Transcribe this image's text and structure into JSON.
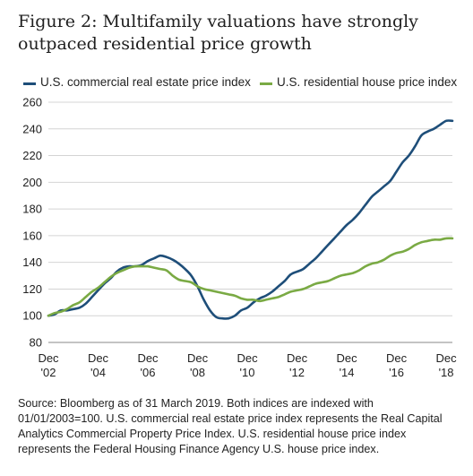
{
  "figure": {
    "title": "Figure 2: Multifamily valuations have strongly outpaced residential price growth",
    "source": "Source: Bloomberg as of 31 March 2019. Both indices are indexed with 01/01/2003=100. U.S. commercial real estate price index represents the Real Capital Analytics Commercial Property Price Index. U.S. residential house price index represents the Federal Housing Finance Agency U.S. house price index."
  },
  "chart_data": {
    "type": "line",
    "title": "Figure 2: Multifamily valuations have strongly outpaced residential price growth",
    "xlabel": "",
    "ylabel": "",
    "ylim": [
      80,
      260
    ],
    "yticks": [
      80,
      100,
      120,
      140,
      160,
      180,
      200,
      220,
      240,
      260
    ],
    "xlim": [
      2003,
      2019.25
    ],
    "xticks": [
      {
        "x": 2003,
        "label": [
          "Dec",
          "'02"
        ]
      },
      {
        "x": 2005,
        "label": [
          "Dec",
          "'04"
        ]
      },
      {
        "x": 2007,
        "label": [
          "Dec",
          "'06"
        ]
      },
      {
        "x": 2009,
        "label": [
          "Dec",
          "'08"
        ]
      },
      {
        "x": 2011,
        "label": [
          "Dec",
          "'10"
        ]
      },
      {
        "x": 2013,
        "label": [
          "Dec",
          "'12"
        ]
      },
      {
        "x": 2015,
        "label": [
          "Dec",
          "'14"
        ]
      },
      {
        "x": 2017,
        "label": [
          "Dec",
          "'16"
        ]
      },
      {
        "x": 2019,
        "label": [
          "Dec",
          "'18"
        ]
      }
    ],
    "grid": "horizontal",
    "legend": "top",
    "series": [
      {
        "name": "U.S. commercial real estate price index",
        "color": "#1e4e79",
        "x": [
          2003,
          2003.25,
          2003.5,
          2003.75,
          2004,
          2004.25,
          2004.5,
          2004.75,
          2005,
          2005.25,
          2005.5,
          2005.75,
          2006,
          2006.25,
          2006.5,
          2006.75,
          2007,
          2007.25,
          2007.5,
          2007.75,
          2008,
          2008.25,
          2008.5,
          2008.75,
          2009,
          2009.25,
          2009.5,
          2009.75,
          2010,
          2010.25,
          2010.5,
          2010.75,
          2011,
          2011.25,
          2011.5,
          2011.75,
          2012,
          2012.25,
          2012.5,
          2012.75,
          2013,
          2013.25,
          2013.5,
          2013.75,
          2014,
          2014.25,
          2014.5,
          2014.75,
          2015,
          2015.25,
          2015.5,
          2015.75,
          2016,
          2016.25,
          2016.5,
          2016.75,
          2017,
          2017.25,
          2017.5,
          2017.75,
          2018,
          2018.25,
          2018.5,
          2018.75,
          2019,
          2019.25
        ],
        "values": [
          100,
          101,
          104,
          104,
          105,
          106,
          109,
          114,
          119,
          124,
          128,
          133,
          136,
          137,
          137,
          138,
          141,
          143,
          145,
          144,
          142,
          139,
          135,
          130,
          122,
          112,
          104,
          99,
          98,
          98,
          100,
          104,
          106,
          110,
          113,
          115,
          118,
          122,
          126,
          131,
          133,
          135,
          139,
          143,
          148,
          153,
          158,
          163,
          168,
          172,
          177,
          183,
          189,
          193,
          197,
          201,
          208,
          215,
          220,
          227,
          235,
          238,
          240,
          243,
          246,
          246
        ]
      },
      {
        "name": "U.S. residential house price index",
        "color": "#7aaa44",
        "x": [
          2003,
          2003.25,
          2003.5,
          2003.75,
          2004,
          2004.25,
          2004.5,
          2004.75,
          2005,
          2005.25,
          2005.5,
          2005.75,
          2006,
          2006.25,
          2006.5,
          2006.75,
          2007,
          2007.25,
          2007.5,
          2007.75,
          2008,
          2008.25,
          2008.5,
          2008.75,
          2009,
          2009.25,
          2009.5,
          2009.75,
          2010,
          2010.25,
          2010.5,
          2010.75,
          2011,
          2011.25,
          2011.5,
          2011.75,
          2012,
          2012.25,
          2012.5,
          2012.75,
          2013,
          2013.25,
          2013.5,
          2013.75,
          2014,
          2014.25,
          2014.5,
          2014.75,
          2015,
          2015.25,
          2015.5,
          2015.75,
          2016,
          2016.25,
          2016.5,
          2016.75,
          2017,
          2017.25,
          2017.5,
          2017.75,
          2018,
          2018.25,
          2018.5,
          2018.75,
          2019,
          2019.25
        ],
        "values": [
          100,
          102,
          103,
          105,
          108,
          110,
          114,
          118,
          121,
          125,
          129,
          132,
          134,
          136,
          137,
          137,
          137,
          136,
          135,
          134,
          130,
          127,
          126,
          125,
          122,
          120,
          119,
          118,
          117,
          116,
          115,
          113,
          112,
          112,
          111,
          112,
          113,
          114,
          116,
          118,
          119,
          120,
          122,
          124,
          125,
          126,
          128,
          130,
          131,
          132,
          134,
          137,
          139,
          140,
          142,
          145,
          147,
          148,
          150,
          153,
          155,
          156,
          157,
          157,
          158,
          158
        ]
      }
    ]
  }
}
